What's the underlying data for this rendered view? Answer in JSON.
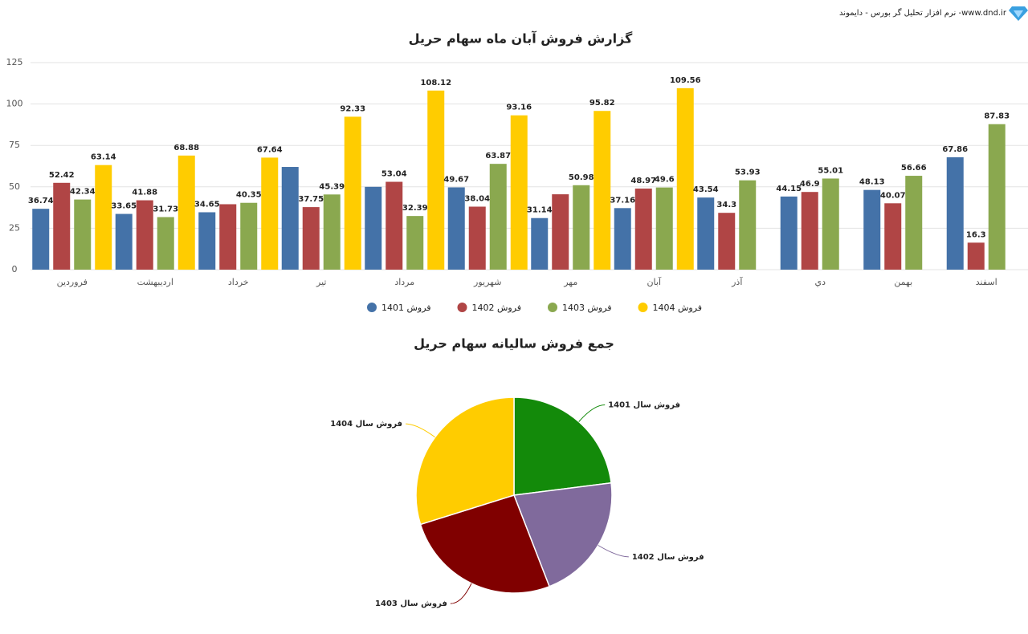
{
  "header": {
    "brand": "نرم افزار تحلیل گر بورس - دایموند -www.dnd.ir"
  },
  "chart_data": [
    {
      "type": "bar",
      "title": "گزارش فروش آبان ماه سهام حریل",
      "categories": [
        "فروردین",
        "اردیبهشت",
        "خرداد",
        "تیر",
        "مرداد",
        "شهریور",
        "مهر",
        "آبان",
        "آذر",
        "دي",
        "بهمن",
        "اسفند"
      ],
      "series": [
        {
          "name": "فروش 1401",
          "color": "#4472a8",
          "values": [
            36.74,
            33.65,
            34.65,
            62,
            50,
            49.67,
            31.14,
            37.16,
            43.54,
            44.15,
            48.13,
            67.86
          ],
          "value_labels": [
            "36.74",
            "33.65",
            "34.65",
            null,
            null,
            "49.67",
            "31.14",
            "37.16",
            "43.54",
            "44.15",
            "48.13",
            "67.86"
          ]
        },
        {
          "name": "فروش 1402",
          "color": "#b04545",
          "values": [
            52.42,
            41.88,
            39.5,
            37.75,
            53.04,
            38.04,
            45.5,
            48.97,
            34.3,
            46.9,
            40.07,
            16.3
          ],
          "value_labels": [
            "52.42",
            "41.88",
            null,
            "37.75",
            "53.04",
            "38.04",
            null,
            "48.97",
            "34.3",
            "46.9",
            "40.07",
            "16.3"
          ]
        },
        {
          "name": "فروش 1403",
          "color": "#8aa84f",
          "values": [
            42.34,
            31.73,
            40.35,
            45.39,
            32.39,
            63.87,
            50.98,
            49.6,
            53.93,
            55.01,
            56.66,
            87.83
          ],
          "value_labels": [
            "42.34",
            "31.73",
            "40.35",
            "45.39",
            "32.39",
            "63.87",
            "50.98",
            "49.6",
            "53.93",
            "55.01",
            "56.66",
            "87.83"
          ]
        },
        {
          "name": "فروش 1404",
          "color": "#ffcc00",
          "values": [
            63.14,
            68.88,
            67.64,
            92.33,
            108.12,
            93.16,
            95.82,
            109.56,
            null,
            null,
            null,
            null
          ],
          "value_labels": [
            "63.14",
            "68.88",
            "67.64",
            "92.33",
            "108.12",
            "93.16",
            "95.82",
            "109.56",
            null,
            null,
            null,
            null
          ]
        }
      ],
      "ylim": [
        0,
        125
      ],
      "yticks": [
        0,
        25,
        50,
        75,
        100,
        125
      ],
      "grid": true,
      "legend": "bottom"
    },
    {
      "type": "pie",
      "title": "جمع فروش سالیانه سهام حریل",
      "labels": [
        "فروش سال 1401",
        "فروش سال 1402",
        "فروش سال 1403",
        "فروش سال 1404"
      ],
      "values": [
        538.69,
        494.67,
        610.08,
        698.65
      ],
      "colors": [
        "#138a0a",
        "#806a9c",
        "#800000",
        "#ffcc00"
      ]
    }
  ]
}
